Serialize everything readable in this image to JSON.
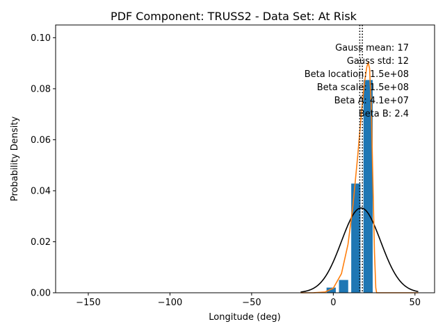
{
  "chart_data": {
    "type": "bar",
    "title": "PDF Component: TRUSS2 - Data Set: At Risk",
    "xlabel": "Longitude (deg)",
    "ylabel": "Probability Density",
    "xlim": [
      -170,
      62
    ],
    "ylim": [
      0,
      0.105
    ],
    "xticks": [
      -150,
      -100,
      -50,
      0,
      50
    ],
    "xtick_labels": [
      "−150",
      "−100",
      "−50",
      "0",
      "50"
    ],
    "yticks": [
      0.0,
      0.02,
      0.04,
      0.06,
      0.08,
      0.1
    ],
    "ytick_labels": [
      "0.00",
      "0.02",
      "0.04",
      "0.06",
      "0.08",
      "0.10"
    ],
    "grid": false,
    "bar_width": 5.9,
    "bars": [
      {
        "x": -156.5,
        "value": 0.0001
      },
      {
        "x": -141.5,
        "value": 0.0001
      },
      {
        "x": -111.5,
        "value": 0.0001
      },
      {
        "x": -74.5,
        "value": 0.0001
      },
      {
        "x": -52.5,
        "value": 0.0001
      },
      {
        "x": -23.0,
        "value": 0.0001
      },
      {
        "x": -1.3,
        "value": 0.0021
      },
      {
        "x": 6.3,
        "value": 0.0051
      },
      {
        "x": 13.8,
        "value": 0.0429
      },
      {
        "x": 21.3,
        "value": 0.0835
      }
    ],
    "bar_color": "#1f77b4",
    "gauss": {
      "mean": 17,
      "std": 12,
      "x_range": [
        -20,
        52
      ],
      "color": "#000000"
    },
    "beta_curve": {
      "color": "#ff7f0e",
      "points": [
        [
          -20,
          0
        ],
        [
          -12,
          1e-05
        ],
        [
          -5,
          0.0003
        ],
        [
          0,
          0.0018
        ],
        [
          5,
          0.0075
        ],
        [
          9,
          0.019
        ],
        [
          12,
          0.034
        ],
        [
          15,
          0.054
        ],
        [
          17,
          0.069
        ],
        [
          19,
          0.082
        ],
        [
          20.5,
          0.0885
        ],
        [
          21.3,
          0.0903
        ],
        [
          22.2,
          0.088
        ],
        [
          23.2,
          0.074
        ],
        [
          24.2,
          0.045
        ],
        [
          25.2,
          0.016
        ],
        [
          26,
          0.002
        ],
        [
          26.5,
          0
        ],
        [
          52,
          0
        ]
      ]
    },
    "vlines": [
      {
        "x": 16.2,
        "style": "dotted"
      },
      {
        "x": 17.8,
        "style": "dotted"
      }
    ],
    "annotations": [
      "Gauss mean: 17",
      "Gauss std: 12",
      "Beta location: 1.5e+08",
      "Beta scale: 1.5e+08",
      "Beta A: 4.1e+07",
      "Beta B: 2.4"
    ]
  }
}
